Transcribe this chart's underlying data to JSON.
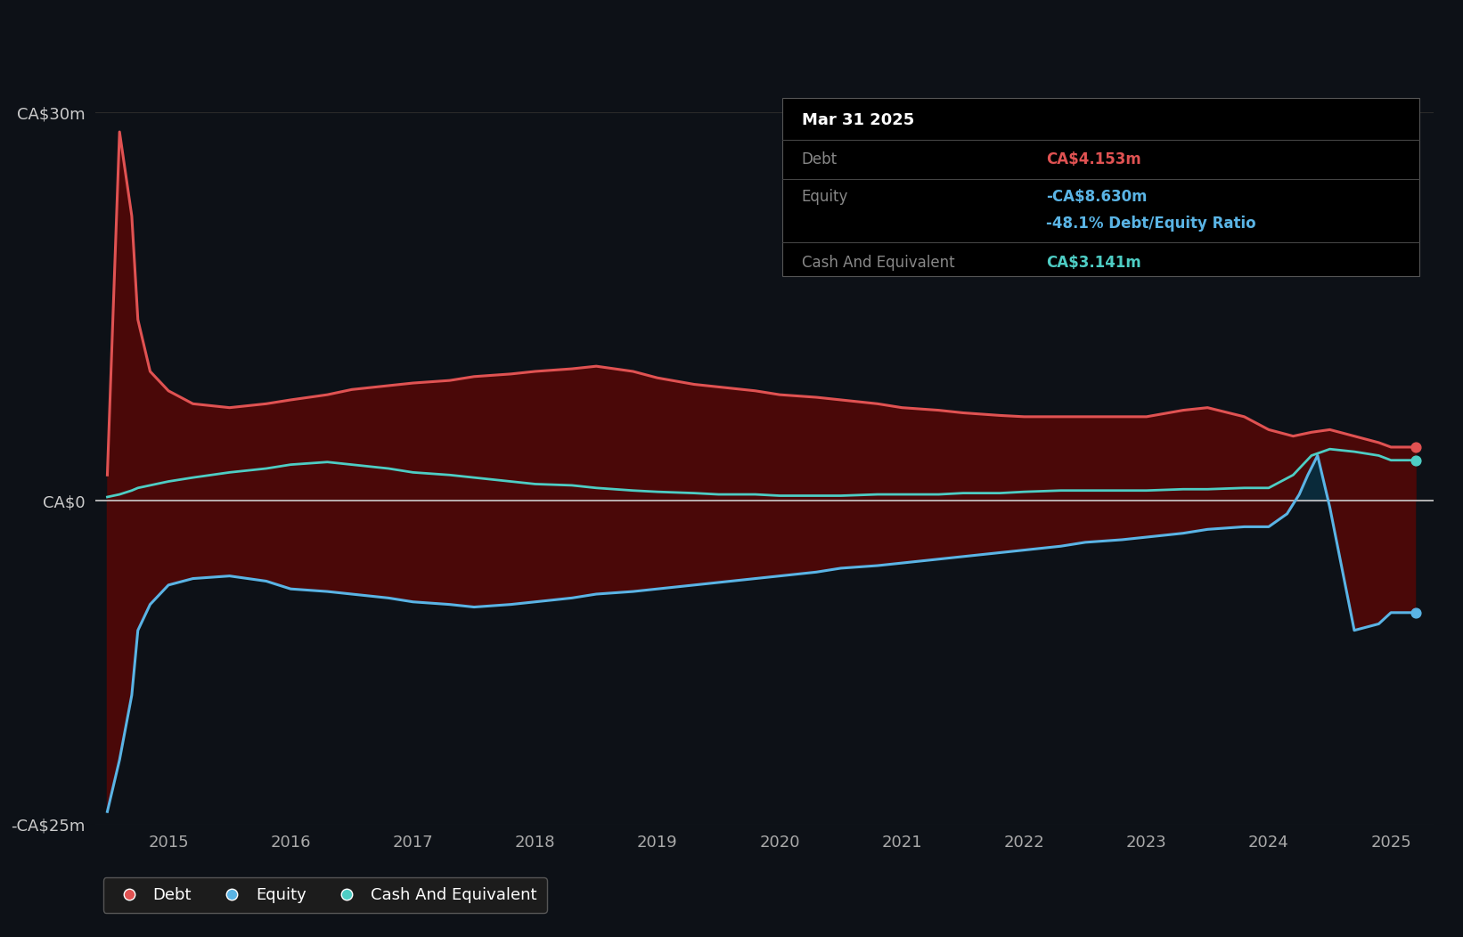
{
  "background_color": "#0d1117",
  "tooltip_date": "Mar 31 2025",
  "tooltip_debt": "CA$4.153m",
  "tooltip_equity": "-CA$8.630m",
  "tooltip_ratio": "-48.1% Debt/Equity Ratio",
  "tooltip_cash": "CA$3.141m",
  "ylim": [
    -25,
    30
  ],
  "yticks": [
    -25,
    0,
    30
  ],
  "ytick_labels": [
    "-CA$25m",
    "CA$0",
    "CA$30m"
  ],
  "xticks": [
    2015,
    2016,
    2017,
    2018,
    2019,
    2020,
    2021,
    2022,
    2023,
    2024,
    2025
  ],
  "debt_color": "#e05252",
  "equity_color": "#5ab4e5",
  "cash_color": "#4ecdc4",
  "fill_above_color": "#4a0808",
  "fill_below_color": "#0a2a3a",
  "zero_line_color": "#cccccc",
  "debt_data_x": [
    2014.5,
    2014.6,
    2014.7,
    2014.75,
    2014.85,
    2015.0,
    2015.2,
    2015.5,
    2015.8,
    2016.0,
    2016.3,
    2016.5,
    2016.8,
    2017.0,
    2017.3,
    2017.5,
    2017.8,
    2018.0,
    2018.3,
    2018.5,
    2018.8,
    2019.0,
    2019.3,
    2019.5,
    2019.8,
    2020.0,
    2020.3,
    2020.5,
    2020.8,
    2021.0,
    2021.3,
    2021.5,
    2021.8,
    2022.0,
    2022.3,
    2022.5,
    2022.8,
    2023.0,
    2023.3,
    2023.5,
    2023.8,
    2024.0,
    2024.2,
    2024.35,
    2024.5,
    2024.7,
    2024.9,
    2025.0,
    2025.2
  ],
  "debt_data_y": [
    2.0,
    28.5,
    22.0,
    14.0,
    10.0,
    8.5,
    7.5,
    7.2,
    7.5,
    7.8,
    8.2,
    8.6,
    8.9,
    9.1,
    9.3,
    9.6,
    9.8,
    10.0,
    10.2,
    10.4,
    10.0,
    9.5,
    9.0,
    8.8,
    8.5,
    8.2,
    8.0,
    7.8,
    7.5,
    7.2,
    7.0,
    6.8,
    6.6,
    6.5,
    6.5,
    6.5,
    6.5,
    6.5,
    7.0,
    7.2,
    6.5,
    5.5,
    5.0,
    5.3,
    5.5,
    5.0,
    4.5,
    4.153,
    4.153
  ],
  "equity_data_x": [
    2014.5,
    2014.6,
    2014.7,
    2014.75,
    2014.85,
    2015.0,
    2015.2,
    2015.5,
    2015.8,
    2016.0,
    2016.3,
    2016.5,
    2016.8,
    2017.0,
    2017.3,
    2017.5,
    2017.8,
    2018.0,
    2018.3,
    2018.5,
    2018.8,
    2019.0,
    2019.3,
    2019.5,
    2019.8,
    2020.0,
    2020.3,
    2020.5,
    2020.8,
    2021.0,
    2021.3,
    2021.5,
    2021.8,
    2022.0,
    2022.3,
    2022.5,
    2022.8,
    2023.0,
    2023.3,
    2023.5,
    2023.8,
    2024.0,
    2024.15,
    2024.25,
    2024.32,
    2024.4,
    2024.5,
    2024.7,
    2024.9,
    2025.0,
    2025.2
  ],
  "equity_data_y": [
    -24.0,
    -20.0,
    -15.0,
    -10.0,
    -8.0,
    -6.5,
    -6.0,
    -5.8,
    -6.2,
    -6.8,
    -7.0,
    -7.2,
    -7.5,
    -7.8,
    -8.0,
    -8.2,
    -8.0,
    -7.8,
    -7.5,
    -7.2,
    -7.0,
    -6.8,
    -6.5,
    -6.3,
    -6.0,
    -5.8,
    -5.5,
    -5.2,
    -5.0,
    -4.8,
    -4.5,
    -4.3,
    -4.0,
    -3.8,
    -3.5,
    -3.2,
    -3.0,
    -2.8,
    -2.5,
    -2.2,
    -2.0,
    -2.0,
    -1.0,
    0.5,
    2.0,
    3.5,
    -0.5,
    -10.0,
    -9.5,
    -8.63,
    -8.63
  ],
  "cash_data_x": [
    2014.5,
    2014.6,
    2014.7,
    2014.75,
    2014.85,
    2015.0,
    2015.2,
    2015.5,
    2015.8,
    2016.0,
    2016.3,
    2016.5,
    2016.8,
    2017.0,
    2017.3,
    2017.5,
    2017.8,
    2018.0,
    2018.3,
    2018.5,
    2018.8,
    2019.0,
    2019.3,
    2019.5,
    2019.8,
    2020.0,
    2020.3,
    2020.5,
    2020.8,
    2021.0,
    2021.3,
    2021.5,
    2021.8,
    2022.0,
    2022.3,
    2022.5,
    2022.8,
    2023.0,
    2023.3,
    2023.5,
    2023.8,
    2024.0,
    2024.2,
    2024.35,
    2024.5,
    2024.7,
    2024.9,
    2025.0,
    2025.2
  ],
  "cash_data_y": [
    0.3,
    0.5,
    0.8,
    1.0,
    1.2,
    1.5,
    1.8,
    2.2,
    2.5,
    2.8,
    3.0,
    2.8,
    2.5,
    2.2,
    2.0,
    1.8,
    1.5,
    1.3,
    1.2,
    1.0,
    0.8,
    0.7,
    0.6,
    0.5,
    0.5,
    0.4,
    0.4,
    0.4,
    0.5,
    0.5,
    0.5,
    0.6,
    0.6,
    0.7,
    0.8,
    0.8,
    0.8,
    0.8,
    0.9,
    0.9,
    1.0,
    1.0,
    2.0,
    3.5,
    4.0,
    3.8,
    3.5,
    3.141,
    3.141
  ]
}
